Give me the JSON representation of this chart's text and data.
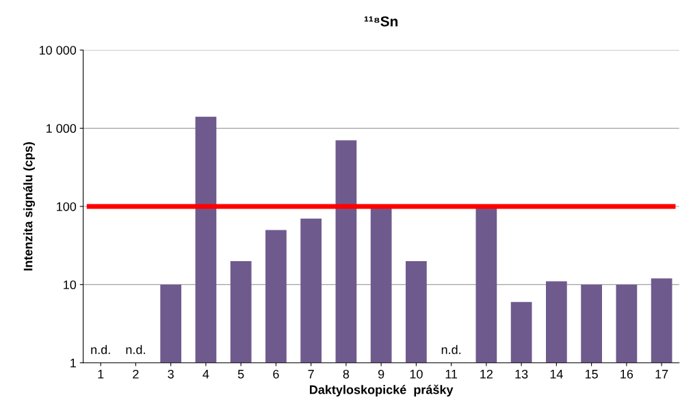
{
  "chart_data": {
    "type": "bar",
    "title": "¹¹⁸Sn",
    "xlabel": "Daktyloskopické  prášky",
    "ylabel": "Intenzita signálu (cps)",
    "categories": [
      "1",
      "2",
      "3",
      "4",
      "5",
      "6",
      "7",
      "8",
      "9",
      "10",
      "11",
      "12",
      "13",
      "14",
      "15",
      "16",
      "17"
    ],
    "values": [
      null,
      null,
      10,
      1400,
      20,
      50,
      70,
      700,
      95,
      20,
      null,
      95,
      6,
      11,
      10,
      10,
      12
    ],
    "color": "#6f5a8e",
    "log": true,
    "ylim": [
      1,
      10000
    ],
    "yticks": [
      1,
      10,
      100,
      {
        "value": 1000,
        "label": "1 000"
      },
      {
        "value": 10000,
        "label": "10 000"
      }
    ],
    "grid": "y",
    "ref_lines": [
      {
        "axis": "y",
        "value": 100,
        "color": "#ff0000"
      }
    ],
    "annotations": [
      "n.d.",
      "n.d.",
      "n.d."
    ]
  }
}
